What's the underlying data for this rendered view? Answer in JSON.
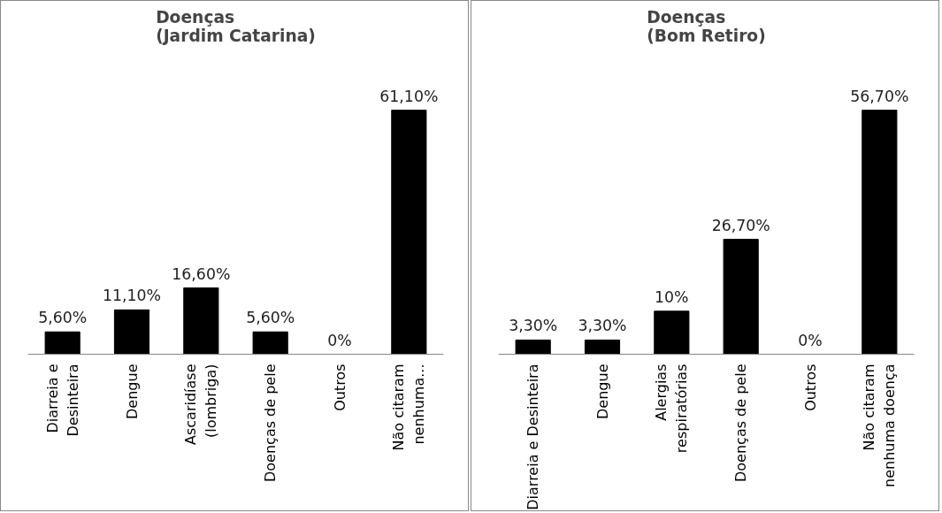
{
  "chart_data": [
    {
      "type": "bar",
      "title": "Doenças\n(Jardim Catarina)",
      "categories": [
        "Diarreia e\nDesinteira",
        "Dengue",
        "Ascaridíase\n(lombriga)",
        "Doenças de pele",
        "Outros",
        "Não citaram\nnenhuma..."
      ],
      "values": [
        5.6,
        11.1,
        16.6,
        5.6,
        0,
        61.1
      ],
      "value_labels": [
        "5,60%",
        "11,10%",
        "16,60%",
        "5,60%",
        "0%",
        "61,10%"
      ],
      "color": "#000000",
      "grid": false
    },
    {
      "type": "bar",
      "title": "Doenças\n(Bom Retiro)",
      "categories": [
        "Diarreia e Desinteira",
        "Dengue",
        "Alergias\nrespiratórias",
        "Doenças de pele",
        "Outros",
        "Não citaram\nnenhuma doença"
      ],
      "values": [
        3.3,
        3.3,
        10,
        26.7,
        0,
        56.7
      ],
      "value_labels": [
        "3,30%",
        "3,30%",
        "10%",
        "26,70%",
        "0%",
        "56,70%"
      ],
      "color": "#000000",
      "grid": false
    }
  ]
}
